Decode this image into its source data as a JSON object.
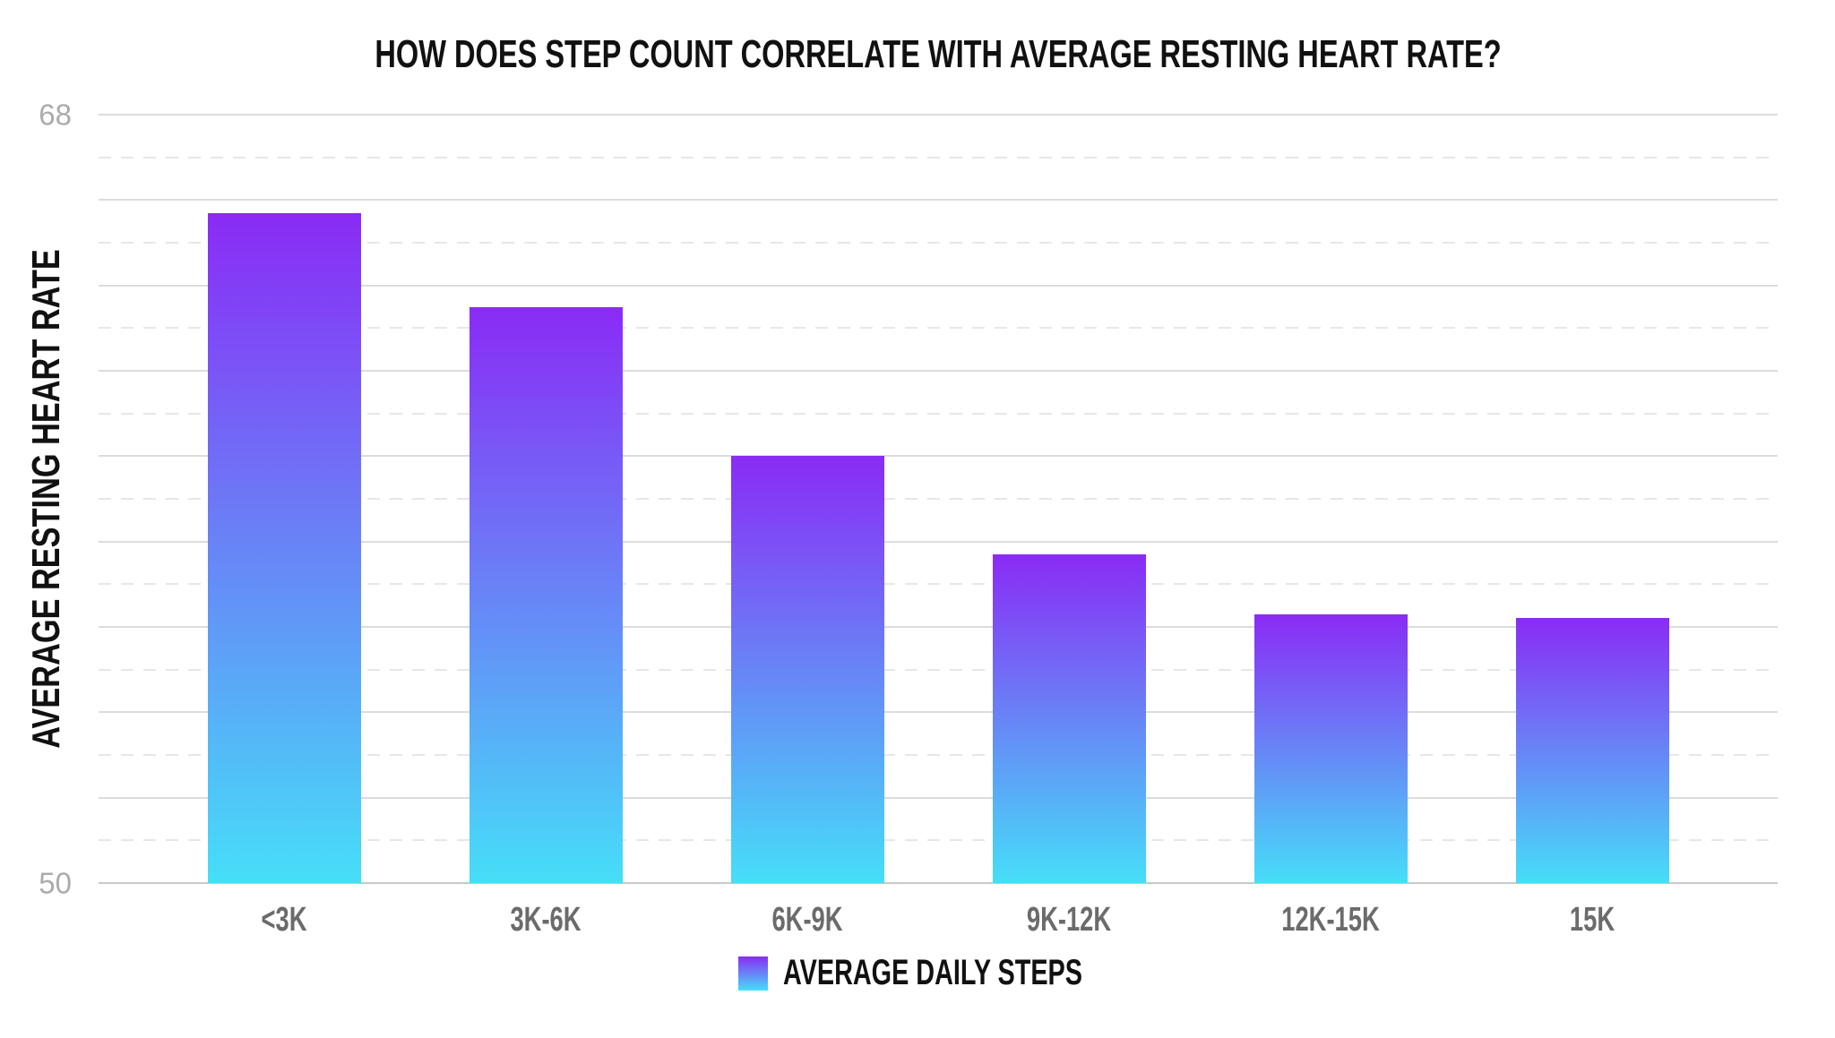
{
  "page": {
    "background": "#ffffff"
  },
  "chart_data": {
    "type": "bar",
    "title": "HOW DOES STEP COUNT CORRELATE WITH AVERAGE RESTING HEART RATE?",
    "ylabel": "AVERAGE RESTING HEART RATE",
    "xlabel": "",
    "categories": [
      "<3K",
      "3K-6K",
      "6K-9K",
      "9K-12K",
      "12K-15K",
      "15K"
    ],
    "values": [
      65.7,
      63.5,
      60.0,
      57.7,
      56.3,
      56.2
    ],
    "ylim": [
      50,
      68
    ],
    "yticks_shown": [
      68,
      50
    ],
    "grid": {
      "on": true,
      "interval": 1,
      "solid_on_even_values": true,
      "dashed_on_odd_values": true
    },
    "legend": {
      "label": "AVERAGE DAILY STEPS",
      "position": "bottom-center",
      "swatch": "gradient-square"
    },
    "bar_gradient": {
      "top": "#8A2BF5",
      "bottom": "#46DEF8"
    },
    "colors": {
      "title": "#111111",
      "tick_label": "#ababab",
      "x_label": "#6b6b6b",
      "grid_solid": "#dcdcdc",
      "grid_dashed": "#e7e7e7",
      "grid_baseline": "#c9c9c9"
    }
  }
}
